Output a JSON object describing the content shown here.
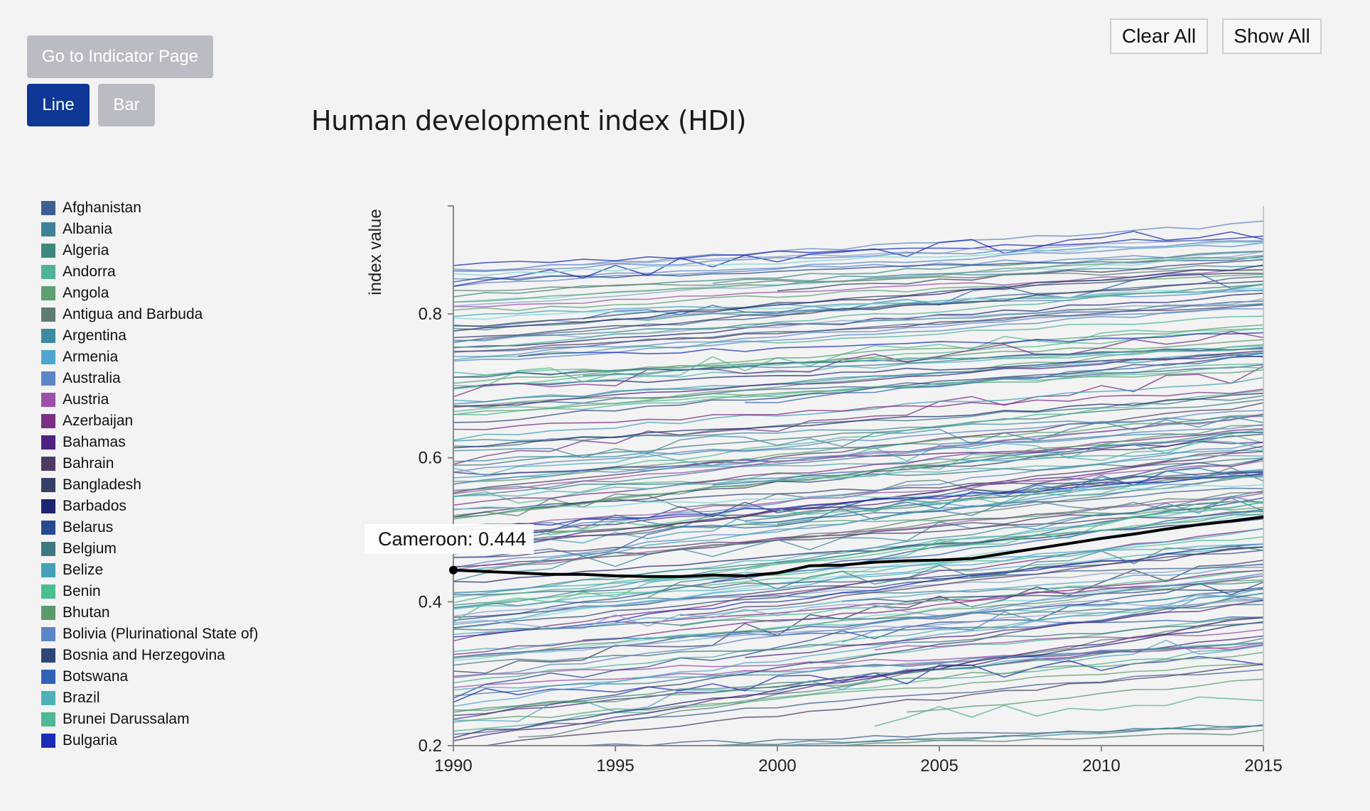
{
  "controls": {
    "indicator_button": "Go to Indicator Page",
    "line_button": "Line",
    "bar_button": "Bar",
    "clear_all_button": "Clear All",
    "show_all_button": "Show All",
    "active_view": "Line"
  },
  "legend": {
    "items": [
      {
        "label": "Afghanistan",
        "color": "#3e5f93"
      },
      {
        "label": "Albania",
        "color": "#3f8297"
      },
      {
        "label": "Algeria",
        "color": "#3d8a7c"
      },
      {
        "label": "Andorra",
        "color": "#4fb29b"
      },
      {
        "label": "Angola",
        "color": "#5c9f72"
      },
      {
        "label": "Antigua and Barbuda",
        "color": "#5e7c72"
      },
      {
        "label": "Argentina",
        "color": "#3d8aa3"
      },
      {
        "label": "Armenia",
        "color": "#4fa6cc"
      },
      {
        "label": "Australia",
        "color": "#5a86c7"
      },
      {
        "label": "Austria",
        "color": "#9b4fa8"
      },
      {
        "label": "Azerbaijan",
        "color": "#7a2f85"
      },
      {
        "label": "Bahamas",
        "color": "#4f2380"
      },
      {
        "label": "Bahrain",
        "color": "#4d3b63"
      },
      {
        "label": "Bangladesh",
        "color": "#364064"
      },
      {
        "label": "Barbados",
        "color": "#1d2572"
      },
      {
        "label": "Belarus",
        "color": "#264a92"
      },
      {
        "label": "Belgium",
        "color": "#3e7882"
      },
      {
        "label": "Belize",
        "color": "#43a0b8"
      },
      {
        "label": "Benin",
        "color": "#4bbf8f"
      },
      {
        "label": "Bhutan",
        "color": "#5a9a6b"
      },
      {
        "label": "Bolivia (Plurinational State of)",
        "color": "#5b86c6"
      },
      {
        "label": "Bosnia and Herzegovina",
        "color": "#2f4577"
      },
      {
        "label": "Botswana",
        "color": "#2f63b6"
      },
      {
        "label": "Brazil",
        "color": "#4fb0b8"
      },
      {
        "label": "Brunei Darussalam",
        "color": "#4fb896"
      },
      {
        "label": "Bulgaria",
        "color": "#1a2bb5"
      }
    ]
  },
  "chart_data": {
    "type": "line",
    "title": "Human development index (HDI)",
    "xlabel": "",
    "ylabel": "index value",
    "xlim": [
      1990,
      2015
    ],
    "ylim": [
      0.2,
      0.95
    ],
    "x_ticks": [
      "1990",
      "1995",
      "2000",
      "2005",
      "2010",
      "2015"
    ],
    "y_ticks": [
      "0.2",
      "0.4",
      "0.6",
      "0.8"
    ],
    "x": [
      1990,
      1991,
      1992,
      1993,
      1994,
      1995,
      1996,
      1997,
      1998,
      1999,
      2000,
      2001,
      2002,
      2003,
      2004,
      2005,
      2006,
      2007,
      2008,
      2009,
      2010,
      2011,
      2012,
      2013,
      2014,
      2015
    ],
    "highlighted_series": {
      "name": "Cameroon",
      "values": [
        0.444,
        0.442,
        0.44,
        0.438,
        0.438,
        0.436,
        0.435,
        0.435,
        0.437,
        0.436,
        0.44,
        0.45,
        0.451,
        0.455,
        0.457,
        0.458,
        0.46,
        0.467,
        0.474,
        0.481,
        0.488,
        0.494,
        0.501,
        0.507,
        0.512,
        0.518
      ]
    },
    "tooltip": {
      "text": "Cameroon: 0.444",
      "x": 1990,
      "y": 0.444
    },
    "background_series": {
      "count": 180,
      "color_palette": [
        "#3e5f93",
        "#3f8297",
        "#3d8a7c",
        "#4fb29b",
        "#5c9f72",
        "#5e7c72",
        "#3d8aa3",
        "#4fa6cc",
        "#5a86c7",
        "#9b4fa8",
        "#7a2f85",
        "#4f2380",
        "#4d3b63",
        "#364064",
        "#1d2572",
        "#264a92",
        "#3e7882",
        "#43a0b8",
        "#4bbf8f",
        "#5a9a6b",
        "#5b86c6",
        "#2f4577",
        "#2f63b6",
        "#4fb0b8",
        "#4fb896",
        "#1a2bb5",
        "#7fd4d8",
        "#8aa0cf"
      ],
      "start_range": [
        0.18,
        0.87
      ],
      "end_range": [
        0.35,
        0.95
      ]
    },
    "grid": false
  }
}
